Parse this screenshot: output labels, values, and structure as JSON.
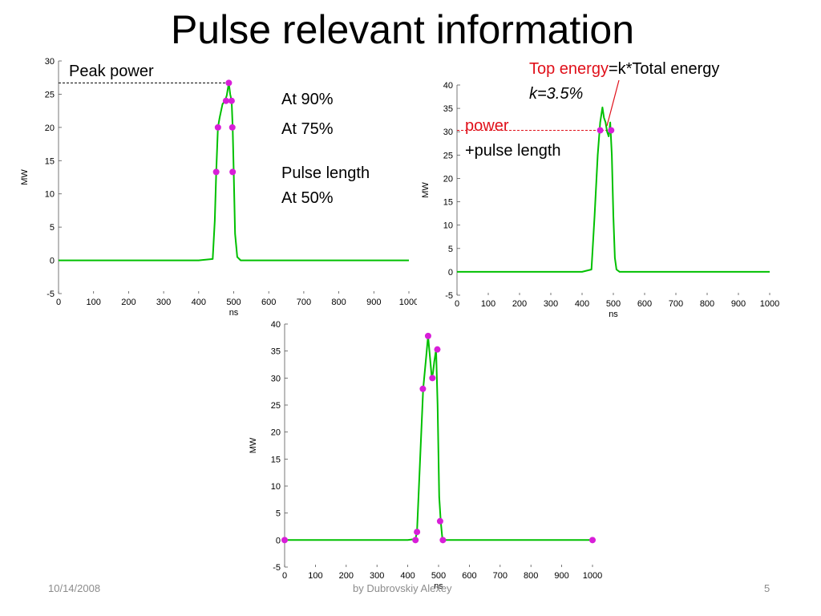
{
  "slide": {
    "title": "Pulse relevant information",
    "footer": {
      "date": "10/14/2008",
      "author": "by Dubrovskiy Alexey",
      "page": "5"
    }
  },
  "annotations": {
    "peak_power": "Peak power",
    "at90": "At 90%",
    "at75": "At 75%",
    "pulse_length": "Pulse length",
    "at50": "At 50%",
    "top_energy_red": "Top energy",
    "top_energy_rest": "=k*Total energy",
    "k_value": "k=3.5%",
    "power": "power",
    "plus_pulse_length": "+pulse length"
  },
  "colors": {
    "trace": "#00c000",
    "marker": "#d81ed8",
    "annotation_red": "#e0101a",
    "footer": "#8c8c8c"
  },
  "chart_data": [
    {
      "id": "c1",
      "type": "line",
      "xlabel": "ns",
      "ylabel": "MW",
      "xlim": [
        0,
        1000
      ],
      "ylim": [
        -5,
        30
      ],
      "xticks": [
        0,
        100,
        200,
        300,
        400,
        500,
        600,
        700,
        800,
        900,
        1000
      ],
      "yticks": [
        -5,
        0,
        5,
        10,
        15,
        20,
        25,
        30
      ],
      "grid": false,
      "series": [
        {
          "x": [
            0,
            100,
            200,
            300,
            400,
            440,
            446,
            450,
            455,
            460,
            468,
            475,
            480,
            486,
            490,
            494,
            497,
            500,
            504,
            510,
            520,
            600,
            700,
            800,
            900,
            1000
          ],
          "y": [
            0,
            0,
            0,
            0,
            0,
            0.2,
            6,
            13.3,
            20,
            21.5,
            23.5,
            24,
            24.8,
            26.7,
            25,
            24,
            20,
            13.3,
            4,
            0.5,
            0,
            0,
            0,
            0,
            0,
            0
          ]
        }
      ],
      "markers": {
        "x": [
          450,
          455,
          478,
          486,
          494,
          496,
          497
        ],
        "y": [
          13.3,
          20,
          24,
          26.7,
          24,
          20,
          13.3
        ]
      },
      "reference_line": {
        "color": "#000000",
        "style": "dashed",
        "x": [
          0,
          486
        ],
        "y": [
          26.7,
          26.7
        ]
      }
    },
    {
      "id": "c2",
      "type": "line",
      "xlabel": "ns",
      "ylabel": "MW",
      "xlim": [
        0,
        1000
      ],
      "ylim": [
        -5,
        40
      ],
      "xticks": [
        0,
        100,
        200,
        300,
        400,
        500,
        600,
        700,
        800,
        900,
        1000
      ],
      "yticks": [
        -5,
        0,
        5,
        10,
        15,
        20,
        25,
        30,
        35,
        40
      ],
      "grid": false,
      "series": [
        {
          "x": [
            0,
            100,
            200,
            300,
            400,
            430,
            440,
            450,
            458,
            465,
            470,
            475,
            480,
            485,
            490,
            495,
            500,
            505,
            510,
            520,
            600,
            700,
            800,
            900,
            1000
          ],
          "y": [
            0,
            0,
            0,
            0,
            0,
            0.5,
            12,
            25,
            32,
            35.2,
            33,
            32,
            30,
            29,
            32,
            25,
            12,
            3,
            0.5,
            0,
            0,
            0,
            0,
            0,
            0
          ]
        }
      ],
      "markers": {
        "x": [
          458,
          493
        ],
        "y": [
          30.3,
          30.3
        ]
      },
      "reference_line": {
        "color": "#e0101a",
        "style": "dashed",
        "x": [
          0,
          493
        ],
        "y": [
          30.3,
          30.3
        ]
      }
    },
    {
      "id": "c3",
      "type": "line",
      "xlabel": "ns",
      "ylabel": "MW",
      "xlim": [
        0,
        1000
      ],
      "ylim": [
        -5,
        40
      ],
      "xticks": [
        0,
        100,
        200,
        300,
        400,
        500,
        600,
        700,
        800,
        900,
        1000
      ],
      "yticks": [
        -5,
        0,
        5,
        10,
        15,
        20,
        25,
        30,
        35,
        40
      ],
      "grid": false,
      "series": [
        {
          "x": [
            0,
            100,
            200,
            300,
            400,
            425,
            430,
            440,
            450,
            460,
            466,
            472,
            478,
            482,
            486,
            492,
            497,
            502,
            507,
            512,
            520,
            600,
            700,
            800,
            900,
            1000
          ],
          "y": [
            0,
            0,
            0,
            0,
            0,
            0.2,
            1.5,
            15,
            28,
            34,
            37.8,
            34,
            30,
            31,
            33,
            35.3,
            25,
            8,
            3.5,
            0.5,
            0,
            0,
            0,
            0,
            0,
            0
          ]
        }
      ],
      "markers": {
        "x": [
          0,
          425,
          430,
          449,
          466,
          480,
          496,
          505,
          514,
          1000
        ],
        "y": [
          0,
          0,
          1.5,
          28,
          37.8,
          30,
          35.3,
          3.5,
          0,
          0
        ]
      }
    }
  ]
}
